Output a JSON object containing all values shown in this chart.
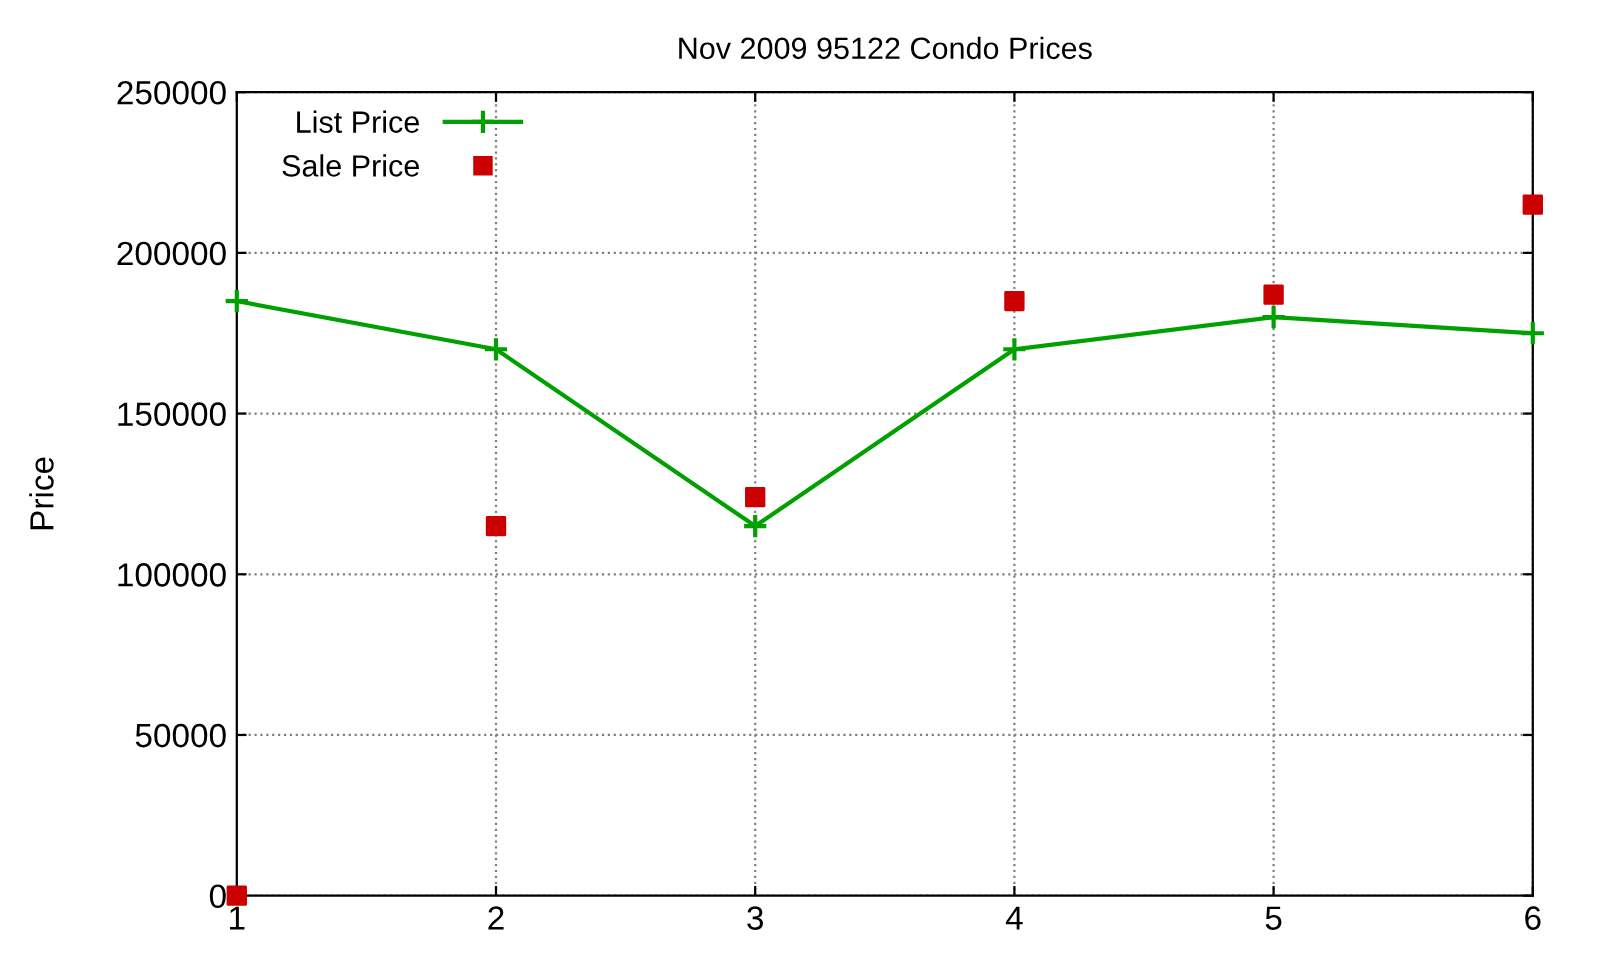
{
  "chart_data": {
    "type": "line",
    "title": "Nov 2009 95122 Condo Prices",
    "ylabel": "Price",
    "xlim": [
      1,
      6
    ],
    "xticks": [
      1,
      2,
      3,
      4,
      5,
      6
    ],
    "ylim": [
      0,
      250000
    ],
    "yticks": [
      0,
      50000,
      100000,
      150000,
      200000,
      250000
    ],
    "grid": true,
    "legend": "top left",
    "series": [
      {
        "name": "List Price",
        "color": "#00a000",
        "marker": "cross",
        "line_style": "solid",
        "x": [
          1,
          2,
          3,
          4,
          5,
          6
        ],
        "values": [
          185000,
          170000,
          115000,
          170000,
          180000,
          175000
        ]
      },
      {
        "name": "Sale Price",
        "type": "scatter",
        "color": "#cc0000",
        "marker": "square",
        "x": [
          1,
          2,
          3,
          4,
          5,
          6
        ],
        "values": [
          0,
          115000,
          124000,
          185000,
          187000,
          215000
        ]
      }
    ]
  }
}
